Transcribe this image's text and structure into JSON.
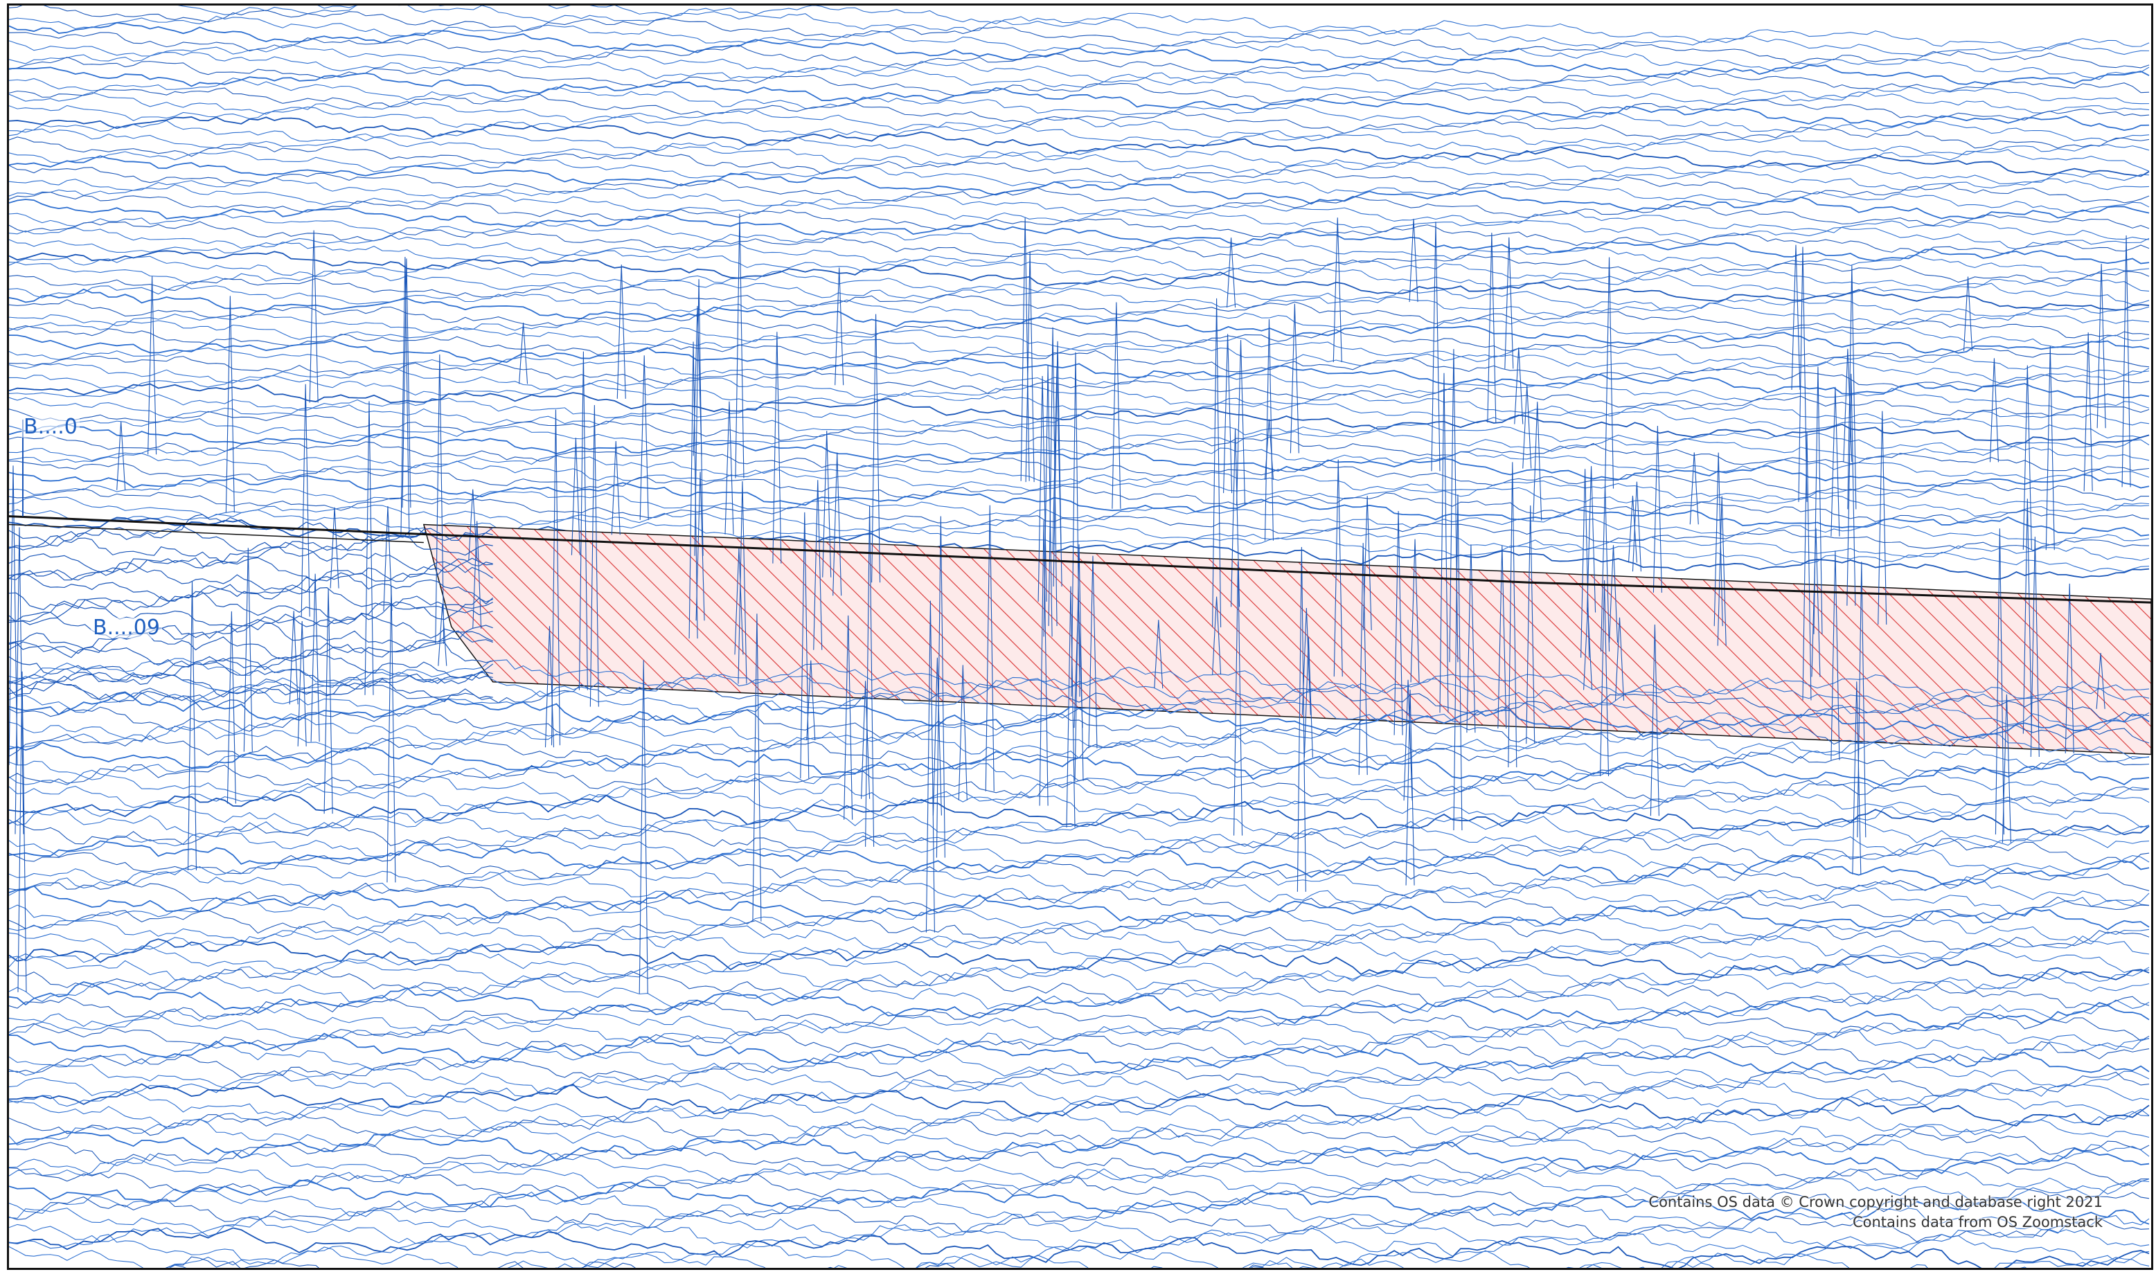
{
  "map": {
    "colors": {
      "contour": "#1a56b8",
      "contour_light": "#2d6fd0",
      "hatch": "#d93030",
      "hatch_fill": "#fdeaea",
      "outline": "#111111"
    },
    "contour_labels": [
      {
        "id": "label-upper",
        "text": "B....0"
      },
      {
        "id": "label-lower",
        "text": "B....09"
      }
    ],
    "attribution": {
      "line1": "Contains OS data © Crown copyright and database right 2021",
      "line2": "Contains data from OS Zoomstack"
    },
    "features": {
      "hatched_area": "hatched-strip",
      "boundary": "black-boundary-line"
    }
  }
}
